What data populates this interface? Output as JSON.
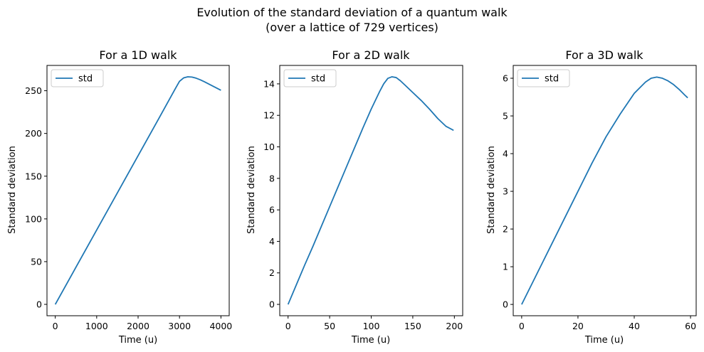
{
  "figure": {
    "title_line1": "Evolution of the standard deviation of a quantum walk",
    "title_line2": "(over a lattice of 729 vertices)"
  },
  "colors": {
    "line": "#1f77b4",
    "axis": "#000000",
    "background": "#ffffff"
  },
  "chart_data": [
    {
      "type": "line",
      "title": "For a 1D walk",
      "xlabel": "Time (u)",
      "ylabel": "Standard deviation",
      "xlim": [
        -200,
        4200
      ],
      "ylim": [
        -13.3,
        279.6
      ],
      "xticks": [
        0,
        1000,
        2000,
        3000,
        4000
      ],
      "yticks": [
        0,
        50,
        100,
        150,
        200,
        250
      ],
      "legend": "top-left",
      "grid": false,
      "series": [
        {
          "name": "std",
          "x": [
            0,
            500,
            1000,
            1500,
            2000,
            2500,
            2900,
            3000,
            3100,
            3200,
            3300,
            3400,
            3500,
            3600,
            3700,
            3800,
            3900,
            4000
          ],
          "y": [
            0,
            43.5,
            87,
            130.5,
            174,
            217.5,
            252.5,
            261,
            265,
            266.3,
            266,
            264.7,
            262.8,
            260.5,
            258,
            255.5,
            253,
            250.5
          ]
        }
      ]
    },
    {
      "type": "line",
      "title": "For a 2D walk",
      "xlabel": "Time (u)",
      "ylabel": "Standard deviation",
      "xlim": [
        -10,
        210
      ],
      "ylim": [
        -0.72,
        15.17
      ],
      "xticks": [
        0,
        50,
        100,
        150,
        200
      ],
      "yticks": [
        0,
        2,
        4,
        6,
        8,
        10,
        12,
        14
      ],
      "legend": "top-left",
      "grid": false,
      "series": [
        {
          "name": "std",
          "x": [
            0,
            10,
            20,
            30,
            40,
            50,
            60,
            70,
            80,
            90,
            100,
            110,
            115,
            120,
            125,
            130,
            135,
            140,
            150,
            160,
            170,
            180,
            190,
            199
          ],
          "y": [
            0,
            1.25,
            2.5,
            3.7,
            4.95,
            6.2,
            7.45,
            8.7,
            9.95,
            11.2,
            12.4,
            13.5,
            14.0,
            14.35,
            14.45,
            14.4,
            14.2,
            13.95,
            13.45,
            12.95,
            12.4,
            11.8,
            11.3,
            11.05
          ]
        }
      ]
    },
    {
      "type": "line",
      "title": "For a 3D walk",
      "xlabel": "Time (u)",
      "ylabel": "Standard deviation",
      "xlim": [
        -3,
        62
      ],
      "ylim": [
        -0.3,
        6.34
      ],
      "xticks": [
        0,
        20,
        40,
        60
      ],
      "yticks": [
        0,
        1,
        2,
        3,
        4,
        5,
        6
      ],
      "legend": "top-left",
      "grid": false,
      "series": [
        {
          "name": "std",
          "x": [
            0,
            5,
            10,
            15,
            20,
            25,
            30,
            35,
            40,
            44,
            46,
            48,
            50,
            52,
            54,
            56,
            58,
            59
          ],
          "y": [
            0,
            0.75,
            1.5,
            2.25,
            3.0,
            3.75,
            4.45,
            5.05,
            5.6,
            5.9,
            6.0,
            6.03,
            6.0,
            5.93,
            5.83,
            5.7,
            5.55,
            5.48
          ]
        }
      ]
    }
  ]
}
